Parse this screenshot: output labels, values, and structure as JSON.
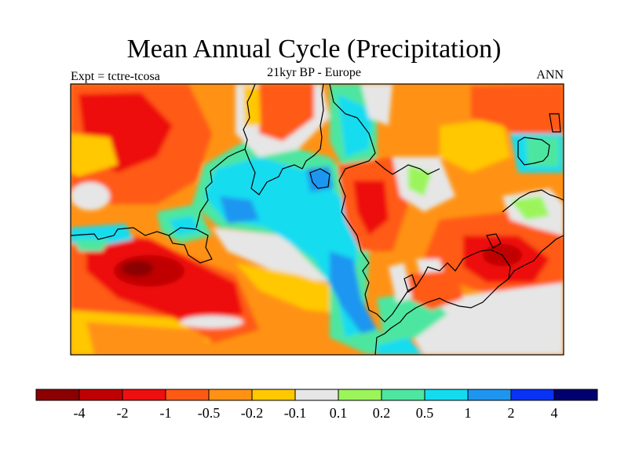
{
  "title": "Mean Annual Cycle (Precipitation)",
  "subtitle": "21kyr BP - Europe",
  "left_label": "Expt = tctre-tcosa",
  "right_label": "ANN",
  "colorbar": {
    "colors": [
      "#8b0000",
      "#c00000",
      "#ee1010",
      "#ff5a14",
      "#ff9214",
      "#ffc800",
      "#e6e6e6",
      "#9bf55a",
      "#4ee6a0",
      "#14dcf0",
      "#1e96f0",
      "#0a32f5",
      "#00006e"
    ],
    "labels": [
      "-4",
      "-2",
      "-1",
      "-0.5",
      "-0.2",
      "-0.1",
      "0.1",
      "0.2",
      "0.5",
      "1",
      "2",
      "4"
    ]
  }
}
